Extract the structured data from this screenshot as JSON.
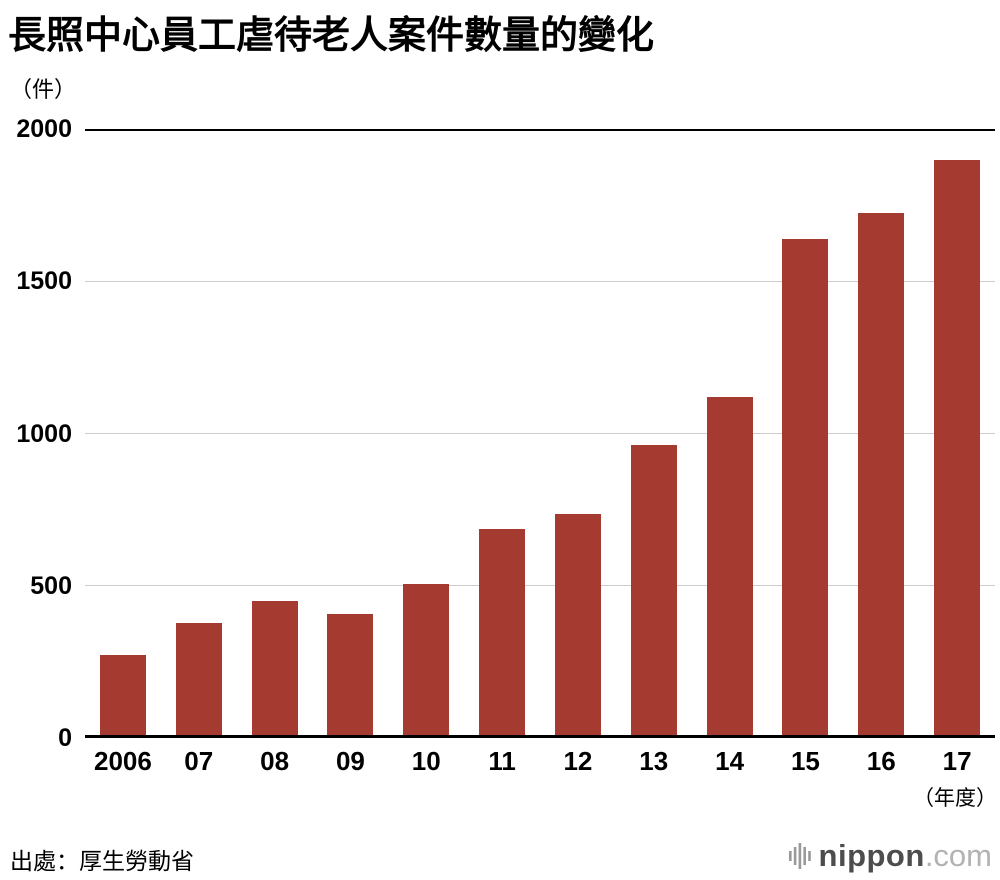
{
  "chart_data": {
    "type": "bar",
    "title": "長照中心員工虐待老人案件數量的變化",
    "ylabel": "（件）",
    "xlabel": "（年度）",
    "categories": [
      "2006",
      "07",
      "08",
      "09",
      "10",
      "11",
      "12",
      "13",
      "14",
      "15",
      "16",
      "17"
    ],
    "values": [
      273,
      379,
      451,
      408,
      506,
      687,
      736,
      962,
      1120,
      1640,
      1723,
      1898
    ],
    "ylim": [
      0,
      2000
    ],
    "ytick_step": 500,
    "grid": true,
    "legend": false
  },
  "source": "出處：厚生勞動省",
  "logo": {
    "icon": "soundwave-bars-icon",
    "name": "nippon",
    "tld": ".com"
  },
  "colors": {
    "bar": "#a53a31",
    "gridline": "#cccccc",
    "axis_line": "#000000",
    "text": "#000000",
    "logo_name": "#4d4d4d",
    "logo_tld": "#b3b3b3",
    "logo_icon": "#999999"
  }
}
